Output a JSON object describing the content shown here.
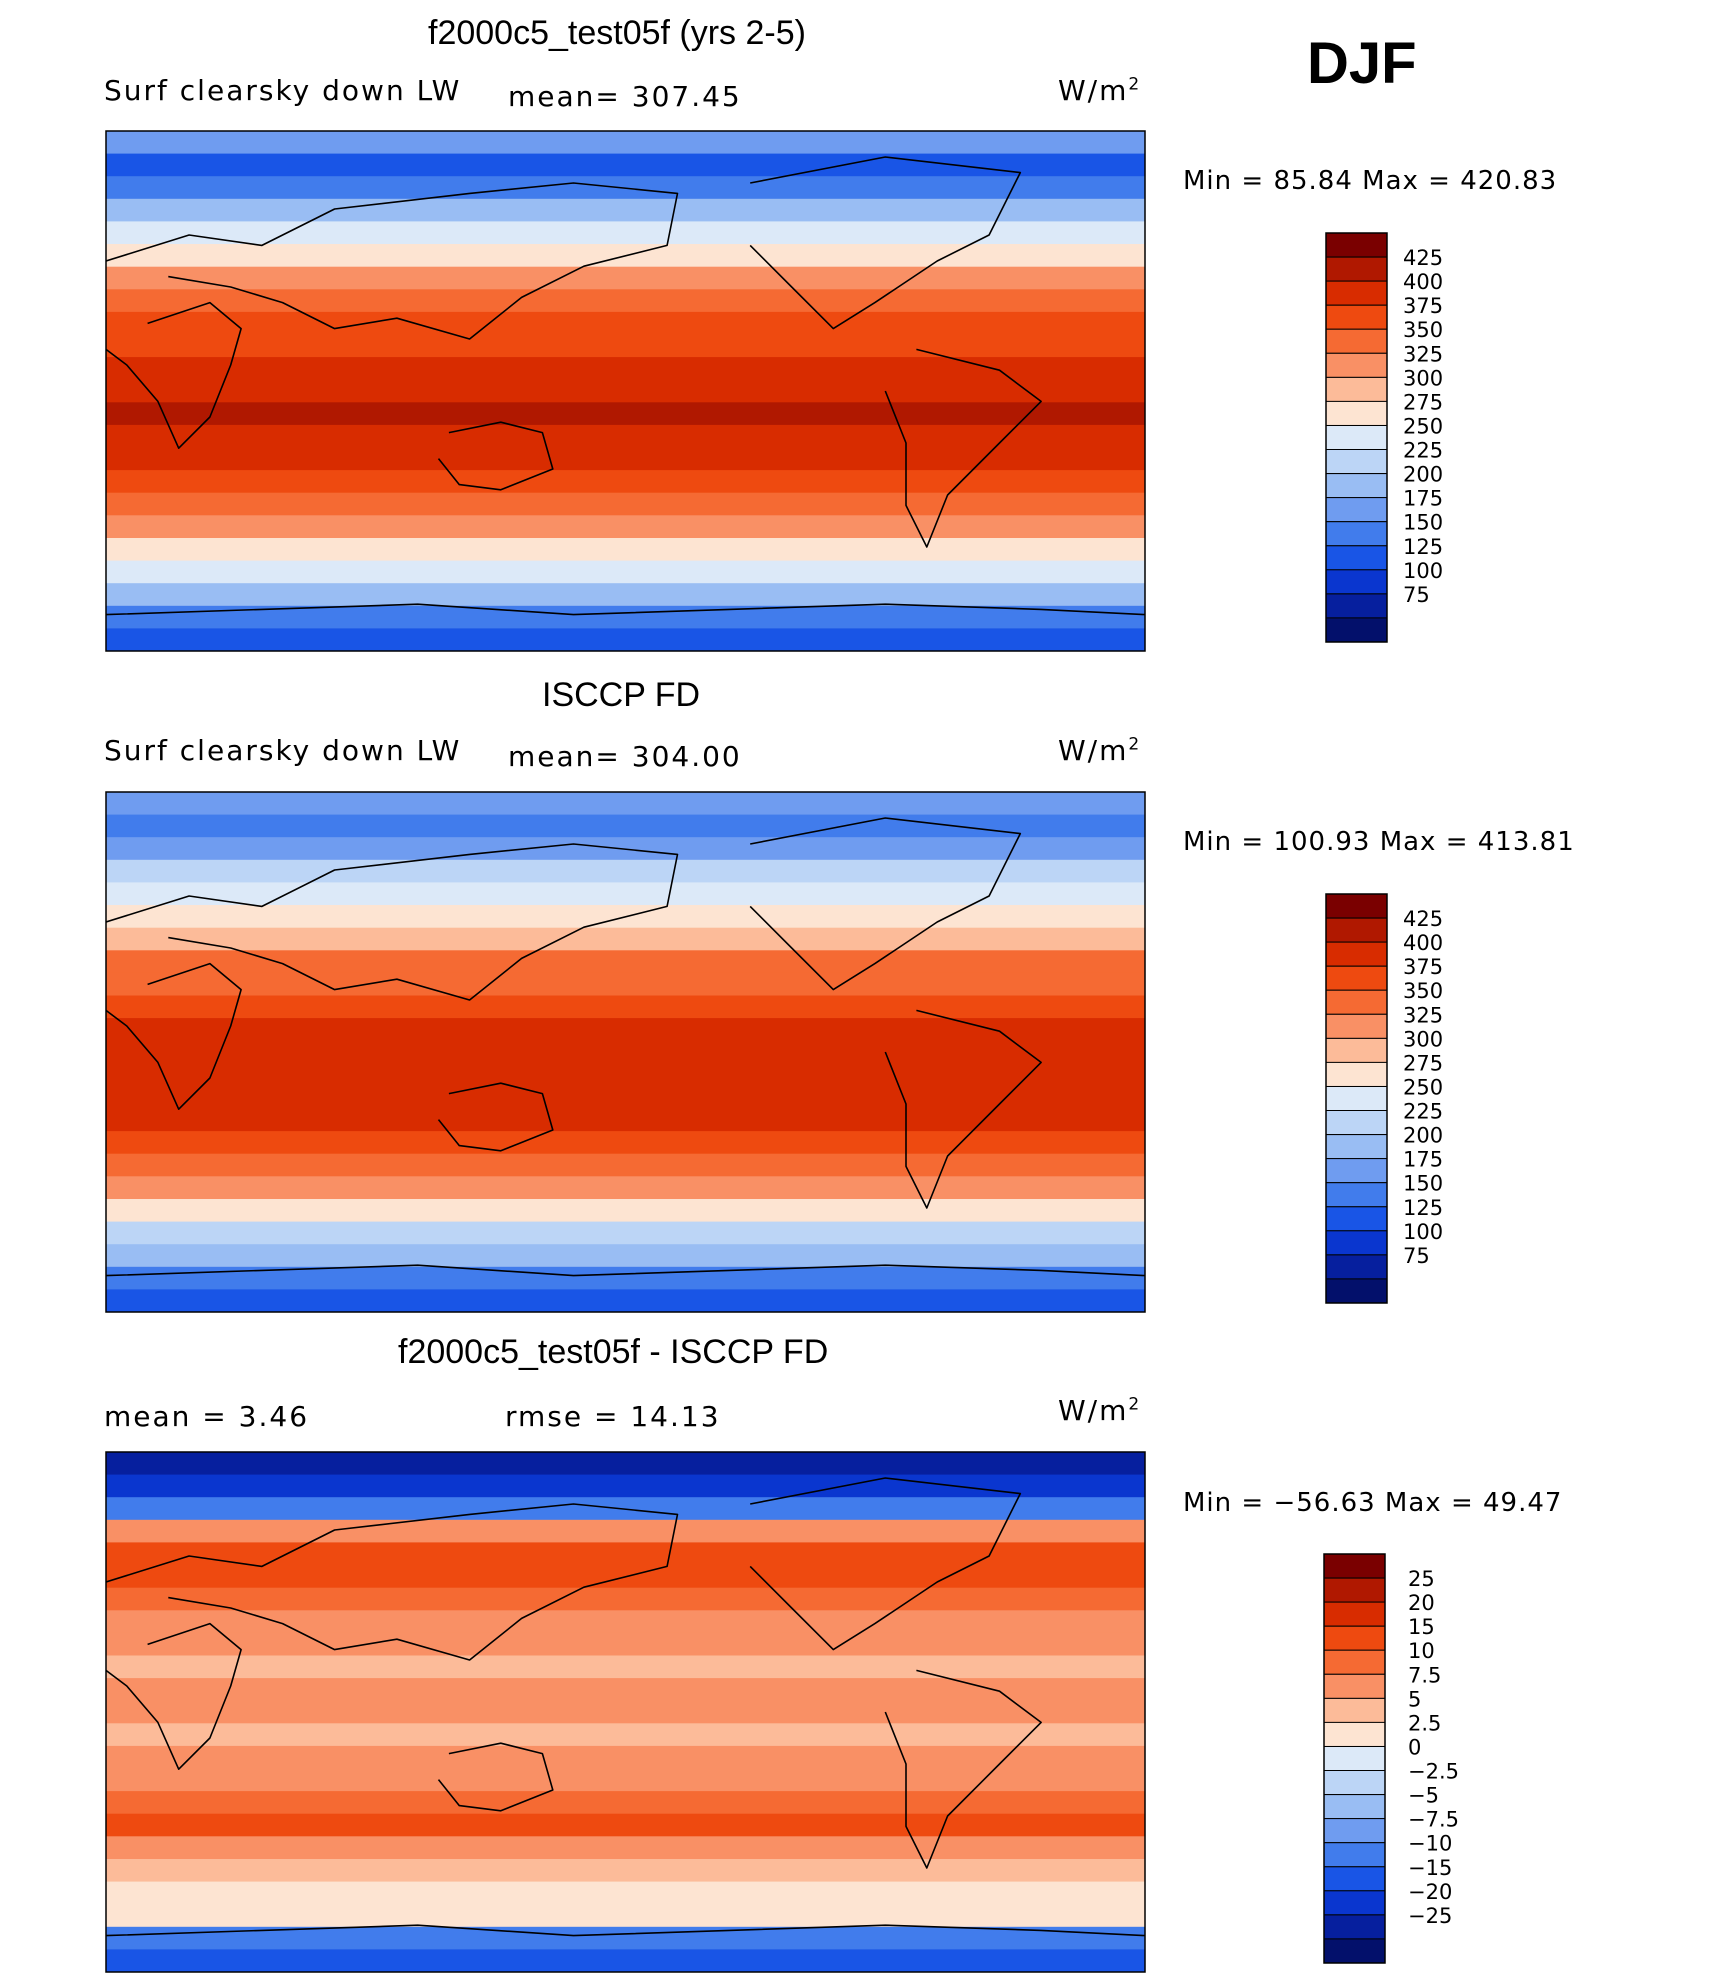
{
  "season": "DJF",
  "unit": "W/m",
  "unit_sup": "2",
  "panels": [
    {
      "title": "f2000c5_test05f (yrs 2-5)",
      "left_label": "Surf clearsky down LW",
      "mid_label": "mean=  307.45",
      "minmax": "Min =   85.84  Max  =  420.83",
      "colorbar": {
        "labels": [
          "425",
          "400",
          "375",
          "350",
          "325",
          "300",
          "275",
          "250",
          "225",
          "200",
          "175",
          "150",
          "125",
          "100",
          "75"
        ],
        "colors": [
          "#7a0000",
          "#b01800",
          "#d82c00",
          "#ee4a10",
          "#f56a33",
          "#f99065",
          "#fcbb99",
          "#fde4d2",
          "#dce9f8",
          "#bcd5f6",
          "#99bdf3",
          "#6f9cf0",
          "#417cec",
          "#1955e6",
          "#0a36cf",
          "#061f9e",
          "#03106b"
        ]
      },
      "chart_data": {
        "type": "heatmap",
        "title": "f2000c5_test05f (yrs 2-5)",
        "subtitle": "Surf clearsky down LW",
        "unit": "W/m2",
        "mean": 307.45,
        "min": 85.84,
        "max": 420.83,
        "levels": [
          75,
          100,
          125,
          150,
          175,
          200,
          225,
          250,
          275,
          300,
          325,
          350,
          375,
          400,
          425
        ],
        "lat_band_values": [
          170,
          110,
          135,
          195,
          240,
          265,
          300,
          330,
          350,
          370,
          382,
          395,
          400,
          395,
          380,
          360,
          335,
          305,
          265,
          225,
          185,
          135,
          110
        ]
      }
    },
    {
      "title": "ISCCP FD",
      "left_label": "Surf clearsky down LW",
      "mid_label": "mean=  304.00",
      "minmax": "Min  =  100.93  Max  =  413.81",
      "colorbar": {
        "labels": [
          "425",
          "400",
          "375",
          "350",
          "325",
          "300",
          "275",
          "250",
          "225",
          "200",
          "175",
          "150",
          "125",
          "100",
          "75"
        ],
        "colors": [
          "#7a0000",
          "#b01800",
          "#d82c00",
          "#ee4a10",
          "#f56a33",
          "#f99065",
          "#fcbb99",
          "#fde4d2",
          "#dce9f8",
          "#bcd5f6",
          "#99bdf3",
          "#6f9cf0",
          "#417cec",
          "#1955e6",
          "#0a36cf",
          "#061f9e",
          "#03106b"
        ]
      },
      "chart_data": {
        "type": "heatmap",
        "title": "ISCCP FD",
        "subtitle": "Surf clearsky down LW",
        "unit": "W/m2",
        "mean": 304.0,
        "min": 100.93,
        "max": 413.81,
        "levels": [
          75,
          100,
          125,
          150,
          175,
          200,
          225,
          250,
          275,
          300,
          325,
          350,
          375,
          400,
          425
        ],
        "lat_band_values": [
          160,
          140,
          165,
          200,
          235,
          262,
          295,
          325,
          348,
          368,
          380,
          392,
          398,
          392,
          378,
          355,
          330,
          300,
          262,
          222,
          180,
          140,
          120
        ]
      }
    },
    {
      "title": "f2000c5_test05f - ISCCP FD",
      "left_label": "mean  =     3.46",
      "mid_label": "rmse  =    14.13",
      "minmax": "Min  = −56.63  Max  =    49.47",
      "colorbar": {
        "labels": [
          "25",
          "20",
          "15",
          "10",
          "7.5",
          "5",
          "2.5",
          "0",
          "−2.5",
          "−5",
          "−7.5",
          "−10",
          "−15",
          "−20",
          "−25"
        ],
        "colors": [
          "#7a0000",
          "#b01800",
          "#d82c00",
          "#ee4a10",
          "#f56a33",
          "#f99065",
          "#fcbb99",
          "#fde4d2",
          "#dce9f8",
          "#bcd5f6",
          "#99bdf3",
          "#6f9cf0",
          "#417cec",
          "#1955e6",
          "#0a36cf",
          "#061f9e",
          "#03106b"
        ]
      },
      "chart_data": {
        "type": "heatmap",
        "title": "f2000c5_test05f - ISCCP FD",
        "unit": "W/m2",
        "mean": 3.46,
        "rmse": 14.13,
        "min": -56.63,
        "max": 49.47,
        "levels": [
          -25,
          -20,
          -15,
          -10,
          -7.5,
          -5,
          -2.5,
          0,
          2.5,
          5,
          7.5,
          10,
          15,
          20,
          25
        ],
        "lat_band_values": [
          -30,
          -25,
          -12,
          6,
          14,
          10,
          8,
          6,
          5,
          4,
          6,
          5,
          4,
          5,
          6,
          8,
          10,
          6,
          3,
          2,
          0,
          -12,
          -20
        ]
      }
    }
  ]
}
